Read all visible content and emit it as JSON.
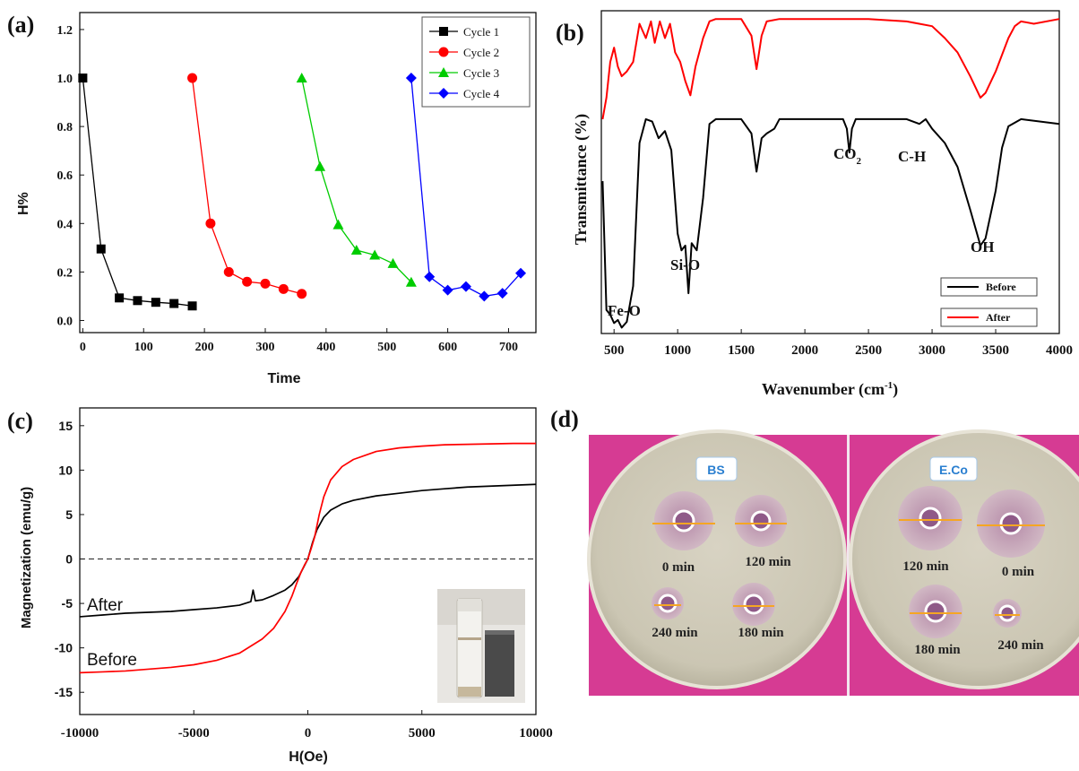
{
  "chart_data": [
    {
      "panel": "(a)",
      "type": "line",
      "xlabel": "Time",
      "ylabel": "H%",
      "xlim": [
        -5,
        745
      ],
      "ylim": [
        -0.05,
        1.27
      ],
      "xticks": [
        0,
        100,
        200,
        300,
        400,
        500,
        600,
        700
      ],
      "yticks": [
        "0.0",
        "0.2",
        "0.4",
        "0.6",
        "0.8",
        "1.0",
        "1.2"
      ],
      "legend_position": "top-right",
      "series": [
        {
          "name": "Cycle 1",
          "color": "#000000",
          "marker": "square",
          "x": [
            0,
            30,
            60,
            90,
            120,
            150,
            180
          ],
          "y": [
            1.0,
            0.295,
            0.093,
            0.082,
            0.075,
            0.07,
            0.06
          ]
        },
        {
          "name": "Cycle 2",
          "color": "#ff0000",
          "marker": "circle",
          "x": [
            180,
            210,
            240,
            270,
            300,
            330,
            360
          ],
          "y": [
            1.0,
            0.4,
            0.2,
            0.16,
            0.152,
            0.13,
            0.11
          ]
        },
        {
          "name": "Cycle 3",
          "color": "#00cc00",
          "marker": "triangle",
          "x": [
            360,
            390,
            420,
            450,
            480,
            510,
            540
          ],
          "y": [
            1.0,
            0.635,
            0.395,
            0.29,
            0.27,
            0.235,
            0.158
          ]
        },
        {
          "name": "Cycle 4",
          "color": "#0000ff",
          "marker": "diamond",
          "x": [
            540,
            570,
            600,
            630,
            660,
            690,
            720
          ],
          "y": [
            1.0,
            0.18,
            0.125,
            0.14,
            0.1,
            0.112,
            0.195
          ]
        }
      ]
    },
    {
      "panel": "(b)",
      "type": "line",
      "xlabel": "Wavenumber (cm",
      "xlabel_sup": "-1",
      "xlabel_end": ")",
      "ylabel": "Transmittance (%)",
      "xlim": [
        400,
        4000
      ],
      "xticks": [
        500,
        1000,
        1500,
        2000,
        2500,
        3000,
        3500,
        4000
      ],
      "legend_position": "bottom-right",
      "annotations": {
        "fe_o": "Fe-O",
        "si_o": "Si-O",
        "co2": "CO",
        "co2_sub": "2",
        "ch": "C-H",
        "oh": "OH"
      },
      "series": [
        {
          "name": "Before",
          "color": "#000000",
          "x": [
            410,
            440,
            470,
            500,
            530,
            560,
            600,
            650,
            700,
            750,
            800,
            850,
            900,
            950,
            1000,
            1030,
            1060,
            1085,
            1110,
            1150,
            1200,
            1250,
            1300,
            1400,
            1500,
            1580,
            1620,
            1660,
            1700,
            1760,
            1800,
            2000,
            2300,
            2330,
            2350,
            2370,
            2400,
            2800,
            2900,
            2950,
            3000,
            3100,
            3200,
            3300,
            3380,
            3420,
            3500,
            3550,
            3600,
            3700,
            4000
          ],
          "y": [
            0.62,
            0.08,
            0.06,
            0.025,
            0.038,
            0.006,
            0.03,
            0.18,
            0.78,
            0.88,
            0.87,
            0.8,
            0.83,
            0.75,
            0.4,
            0.33,
            0.35,
            0.15,
            0.36,
            0.33,
            0.55,
            0.86,
            0.88,
            0.88,
            0.88,
            0.82,
            0.66,
            0.8,
            0.82,
            0.84,
            0.88,
            0.88,
            0.88,
            0.84,
            0.74,
            0.84,
            0.88,
            0.88,
            0.86,
            0.88,
            0.84,
            0.78,
            0.68,
            0.5,
            0.35,
            0.38,
            0.58,
            0.76,
            0.85,
            0.88,
            0.86
          ]
        },
        {
          "name": "After",
          "color": "#ff0000",
          "x": [
            410,
            440,
            470,
            500,
            530,
            560,
            600,
            650,
            700,
            750,
            790,
            820,
            860,
            900,
            940,
            980,
            1020,
            1060,
            1100,
            1140,
            1200,
            1250,
            1300,
            1500,
            1580,
            1620,
            1660,
            1700,
            1800,
            2000,
            2500,
            2800,
            3000,
            3100,
            3200,
            3300,
            3380,
            3420,
            3500,
            3600,
            3650,
            3700,
            3800,
            4000
          ],
          "y": [
            0.88,
            0.97,
            1.12,
            1.18,
            1.1,
            1.06,
            1.08,
            1.12,
            1.28,
            1.22,
            1.29,
            1.2,
            1.29,
            1.22,
            1.28,
            1.16,
            1.12,
            1.04,
            0.98,
            1.1,
            1.22,
            1.29,
            1.3,
            1.3,
            1.23,
            1.09,
            1.23,
            1.29,
            1.3,
            1.3,
            1.3,
            1.29,
            1.27,
            1.22,
            1.16,
            1.06,
            0.97,
            0.99,
            1.08,
            1.22,
            1.27,
            1.29,
            1.28,
            1.3
          ]
        }
      ]
    },
    {
      "panel": "(c)",
      "type": "line",
      "xlabel": "H(Oe)",
      "ylabel": "Magnetization (emu/g)",
      "xlim": [
        -10000,
        10000
      ],
      "ylim": [
        -17.5,
        17
      ],
      "xticks": [
        "-10000",
        "-5000",
        "0",
        "5000",
        "10000"
      ],
      "yticks": [
        "-15",
        "-10",
        "-5",
        "0",
        "5",
        "10",
        "15"
      ],
      "annotations": {
        "after": "After",
        "before": "Before"
      },
      "series": [
        {
          "name": "After",
          "color": "#000000",
          "x": [
            -10000,
            -9000,
            -8000,
            -7000,
            -6000,
            -5000,
            -4000,
            -3000,
            -2500,
            -2400,
            -2300,
            -2000,
            -1500,
            -1000,
            -700,
            -400,
            -200,
            0,
            200,
            400,
            700,
            1000,
            1500,
            2000,
            3000,
            4000,
            5000,
            6000,
            7000,
            8000,
            9000,
            10000
          ],
          "y": [
            -6.5,
            -6.3,
            -6.1,
            -6.0,
            -5.9,
            -5.7,
            -5.5,
            -5.2,
            -4.8,
            -3.5,
            -4.7,
            -4.6,
            -4.1,
            -3.5,
            -2.9,
            -2.0,
            -1.0,
            0,
            1.8,
            3.3,
            4.7,
            5.5,
            6.2,
            6.6,
            7.1,
            7.4,
            7.7,
            7.9,
            8.1,
            8.2,
            8.3,
            8.4
          ]
        },
        {
          "name": "Before",
          "color": "#ff0000",
          "x": [
            -10000,
            -9000,
            -8000,
            -7000,
            -6000,
            -5000,
            -4000,
            -3000,
            -2000,
            -1500,
            -1000,
            -700,
            -500,
            -300,
            -150,
            0,
            150,
            300,
            500,
            700,
            1000,
            1500,
            2000,
            3000,
            4000,
            5000,
            6000,
            7000,
            8000,
            9000,
            10000
          ],
          "y": [
            -12.8,
            -12.7,
            -12.6,
            -12.4,
            -12.2,
            -11.9,
            -11.4,
            -10.6,
            -9.0,
            -7.8,
            -5.9,
            -4.2,
            -2.8,
            -1.5,
            -0.7,
            0,
            1.2,
            2.5,
            5.0,
            7.0,
            8.9,
            10.4,
            11.2,
            12.1,
            12.5,
            12.7,
            12.85,
            12.9,
            12.95,
            13.0,
            13.0
          ]
        }
      ]
    }
  ],
  "panel_d": {
    "label": "(d)",
    "plates": [
      {
        "badge": "BS",
        "wells": [
          {
            "label": "0 min"
          },
          {
            "label": "120 min"
          },
          {
            "label": "240 min"
          },
          {
            "label": "180 min"
          }
        ]
      },
      {
        "badge": "E.Co",
        "wells": [
          {
            "label": "120 min"
          },
          {
            "label": "0 min"
          },
          {
            "label": "180 min"
          },
          {
            "label": "240 min"
          }
        ]
      }
    ]
  }
}
